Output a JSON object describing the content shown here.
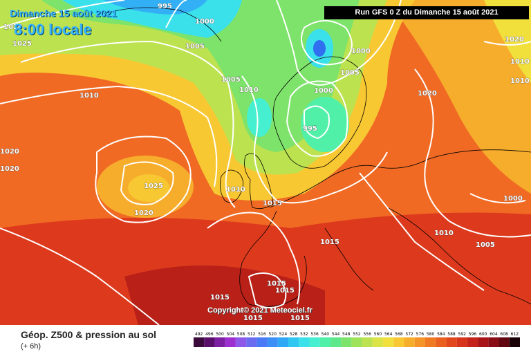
{
  "header": {
    "date": "Dimanche 15 août 2021",
    "time": "8:00 locale",
    "run": "Run GFS 0 Z du Dimanche 15 août 2021"
  },
  "map": {
    "copyright": "Copyright© 2021 Meteociel.fr",
    "isobar_labels": [
      {
        "text": "995"
      },
      {
        "text": "1000"
      },
      {
        "text": "1025"
      },
      {
        "text": "1005"
      },
      {
        "text": "1010"
      },
      {
        "text": "1005"
      },
      {
        "text": "1010"
      },
      {
        "text": "1000"
      },
      {
        "text": "1005"
      },
      {
        "text": "1000"
      },
      {
        "text": "995"
      },
      {
        "text": "1020"
      },
      {
        "text": "1010"
      },
      {
        "text": "1010"
      },
      {
        "text": "1020"
      },
      {
        "text": "1020"
      },
      {
        "text": "1025"
      },
      {
        "text": "1020"
      },
      {
        "text": "1010"
      },
      {
        "text": "1015"
      },
      {
        "text": "1000"
      },
      {
        "text": "1010"
      },
      {
        "text": "1015"
      },
      {
        "text": "1005"
      },
      {
        "text": "1015"
      },
      {
        "text": "1015"
      },
      {
        "text": "1015"
      },
      {
        "text": "1015"
      },
      {
        "text": "1015"
      },
      {
        "text": "1020"
      },
      {
        "text": "1020"
      }
    ],
    "colors": {
      "low": "#33ddff",
      "mid": "#7fe05a",
      "high": "#e8302a",
      "isobar": "#ffffff"
    }
  },
  "footer": {
    "title": "Géop. Z500 & pression au sol",
    "subtitle": "(+ 6h)",
    "scale_values": [
      "492",
      "496",
      "500",
      "504",
      "508",
      "512",
      "516",
      "520",
      "524",
      "528",
      "532",
      "536",
      "540",
      "544",
      "548",
      "552",
      "556",
      "560",
      "564",
      "568",
      "572",
      "576",
      "580",
      "584",
      "588",
      "592",
      "596",
      "600",
      "604",
      "608",
      "612"
    ],
    "scale_colors": [
      "#3b0b3b",
      "#5a0f6b",
      "#7d1fa3",
      "#9d2fd0",
      "#8e58e8",
      "#6b6cf0",
      "#4a7af5",
      "#3b8ff7",
      "#2fa8f5",
      "#30c6f2",
      "#3ae0ea",
      "#45efd0",
      "#50f0a8",
      "#5ee88a",
      "#7ee36a",
      "#9ee25a",
      "#bde24f",
      "#dae446",
      "#f1df3c",
      "#f8c833",
      "#f7ad2c",
      "#f59428",
      "#f07a24",
      "#ea6020",
      "#e2481e",
      "#d6341c",
      "#c4221a",
      "#a91418",
      "#8a0c14",
      "#620710",
      "#1a0306"
    ]
  }
}
